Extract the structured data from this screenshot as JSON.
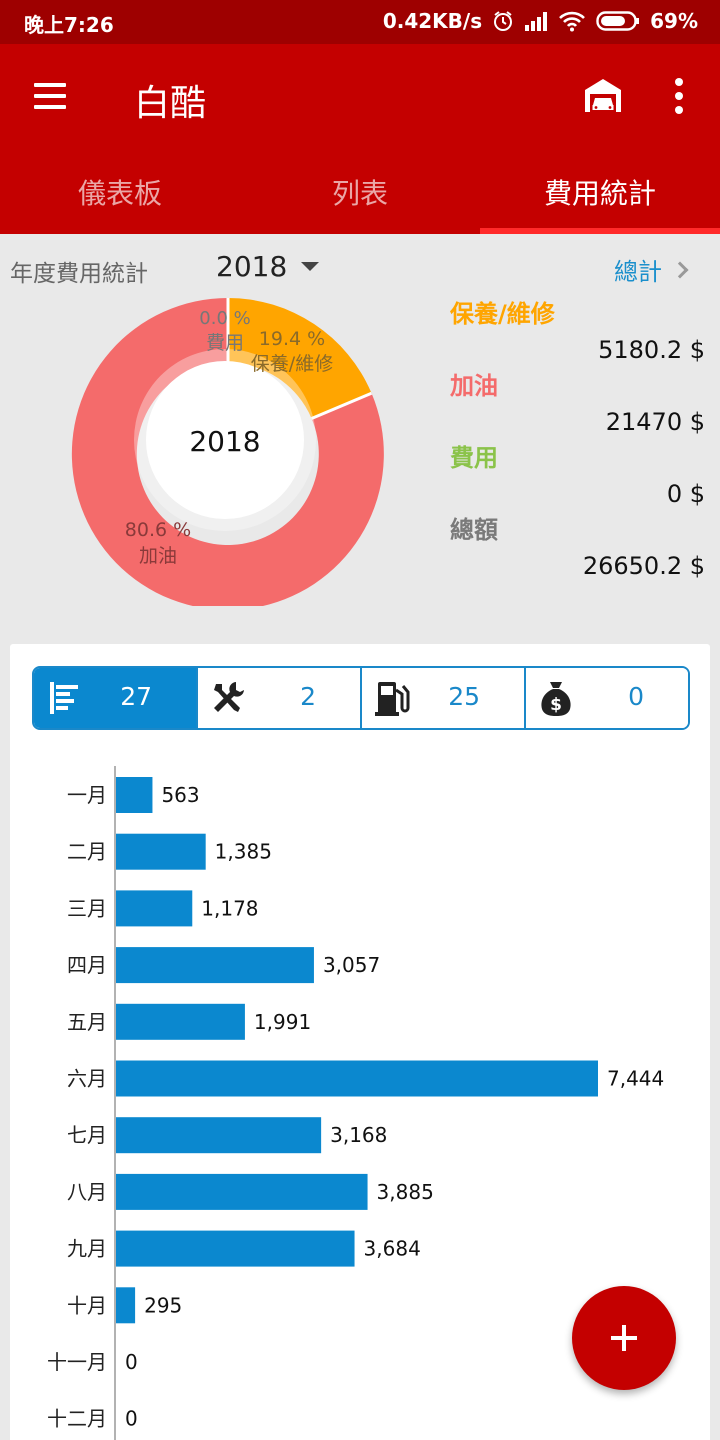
{
  "status_bar": {
    "time": "晚上7:26",
    "speed": "0.42KB/s",
    "battery": "69%",
    "icons": [
      "alarm-icon",
      "signal-icon",
      "wifi-icon",
      "battery-icon"
    ]
  },
  "app_bar": {
    "title": "白酷",
    "icons": [
      "menu-icon",
      "garage-icon",
      "more-vert-icon"
    ]
  },
  "tabs": [
    {
      "label": "儀表板",
      "active": false
    },
    {
      "label": "列表",
      "active": false
    },
    {
      "label": "費用統計",
      "active": true
    }
  ],
  "summary": {
    "label": "年度費用統計",
    "year": "2018",
    "total_link": "總計"
  },
  "donut": {
    "center_label": "2018",
    "slices": [
      {
        "name": "保養/維修",
        "percent_text": "19.4 %",
        "value": 5180.2,
        "color": "#ffa500"
      },
      {
        "name": "加油",
        "percent_text": "80.6 %",
        "value": 21470,
        "color": "#f46b6b"
      },
      {
        "name": "費用",
        "percent_text": "0.0 %",
        "value": 0,
        "color": "#8bc34a"
      }
    ]
  },
  "legend": [
    {
      "label": "保養/維修",
      "value": "5180.2 $",
      "color": "#ffa500"
    },
    {
      "label": "加油",
      "value": "21470 $",
      "color": "#f46b6b"
    },
    {
      "label": "費用",
      "value": "0 $",
      "color": "#8bc34a"
    },
    {
      "label": "總額",
      "value": "26650.2 $",
      "color": "#7a7a7a"
    }
  ],
  "filters": [
    {
      "icon": "list-icon",
      "count": "27",
      "active": true
    },
    {
      "icon": "tools-icon",
      "count": "2",
      "active": false
    },
    {
      "icon": "fuel-pump-icon",
      "count": "25",
      "active": false
    },
    {
      "icon": "money-bag-icon",
      "count": "0",
      "active": false
    }
  ],
  "chart_data": {
    "type": "bar",
    "orientation": "horizontal",
    "categories": [
      "一月",
      "二月",
      "三月",
      "四月",
      "五月",
      "六月",
      "七月",
      "八月",
      "九月",
      "十月",
      "十一月",
      "十二月"
    ],
    "values": [
      563,
      1385,
      1178,
      3057,
      1991,
      7444,
      3168,
      3885,
      3684,
      295,
      0,
      0
    ],
    "value_labels": [
      "563",
      "1,385",
      "1,178",
      "3,057",
      "1,991",
      "7,444",
      "3,168",
      "3,885",
      "3,684",
      "295",
      "0",
      "0"
    ],
    "xlim": [
      0,
      7444
    ],
    "color": "#0b88cf",
    "grid": false
  },
  "fab": {
    "icon": "plus-icon"
  }
}
